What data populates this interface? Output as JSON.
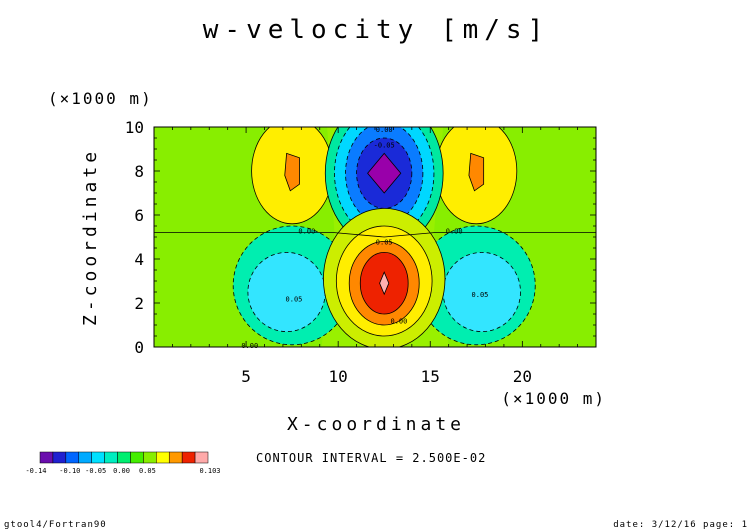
{
  "chart_data": {
    "type": "heatmap",
    "title": "w-velocity [m/s]",
    "xlabel": "X-coordinate",
    "ylabel": "Z-coordinate",
    "x_unit": "(×1000 m)",
    "y_unit": "(×1000 m)",
    "xlim": [
      0,
      24
    ],
    "ylim": [
      0,
      10
    ],
    "x_ticks": [
      "5",
      "10",
      "15",
      "20"
    ],
    "y_ticks": [
      "0",
      "2",
      "4",
      "6",
      "8",
      "10"
    ],
    "contour_interval": "CONTOUR INTERVAL = 2.500E-02",
    "contour_labels": [
      "0.00",
      "-0.05",
      "0.00",
      "0.00",
      "0.05",
      "0.05",
      "0.05",
      "0.00",
      "0.00"
    ],
    "colorbar": {
      "levels": [
        "-0.14",
        "-0.10",
        "-0.05",
        "0.00",
        "0.05",
        "0.103"
      ],
      "colors": [
        "#6a0dad",
        "#2020d0",
        "#0066ff",
        "#00aaff",
        "#00e0ff",
        "#00eec0",
        "#00ee70",
        "#44ee00",
        "#88ee00",
        "#ffff00",
        "#ff9900",
        "#ee2200",
        "#ffaaaa"
      ]
    },
    "field_colors": {
      "background": "#88ee00",
      "upper_gap": "#99f000",
      "down_extreme": "#9900aa",
      "down_strong": "#1a2ad8",
      "down_mid": "#0a7cff",
      "down_weak": "#00d8ff",
      "down_edge": "#00e8a0",
      "side_weak_down": "#00eeb0",
      "side_down": "#33e5ff",
      "up_edge": "#ccee00",
      "up_weak": "#ffee00",
      "up_mid": "#ff8800",
      "up_strong": "#ee2200",
      "up_peak": "#ffb0b0"
    },
    "footer_left": "gtool4/Fortran90",
    "footer_right": "date: 3/12/16 page: 1"
  }
}
